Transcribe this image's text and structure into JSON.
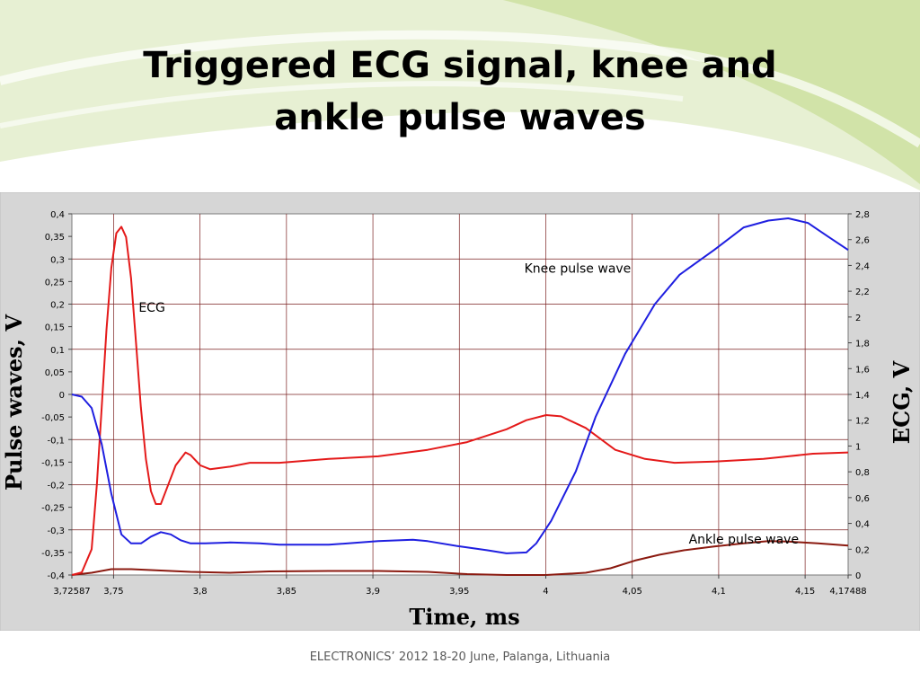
{
  "slide": {
    "title_line1": "Triggered ECG signal, knee and",
    "title_line2": "ankle pulse waves",
    "footer": "ELECTRONICS’ 2012 18-20 June, Palanga, Lithuania"
  },
  "colors": {
    "ecg": "#e41a1a",
    "knee": "#1f1fe0",
    "ankle": "#8b1a10",
    "grid": "#7a2020",
    "panel_bg": "#d6d6d6",
    "slide_accent": "#b8d77a"
  },
  "chart_data": {
    "type": "line",
    "xlabel": "Time, ms",
    "ylabel_left": "Pulse waves, V",
    "ylabel_right": "ECG, V",
    "xlim": [
      3.72587,
      4.17488
    ],
    "ylim_left": [
      -0.4,
      0.4
    ],
    "ylim_right": [
      0,
      2.8
    ],
    "x_ticks": [
      {
        "v": 3.72587,
        "label": "3,72587"
      },
      {
        "v": 3.75,
        "label": "3,75"
      },
      {
        "v": 3.8,
        "label": "3,8"
      },
      {
        "v": 3.85,
        "label": "3,85"
      },
      {
        "v": 3.9,
        "label": "3,9"
      },
      {
        "v": 3.95,
        "label": "3,95"
      },
      {
        "v": 4.0,
        "label": "4"
      },
      {
        "v": 4.05,
        "label": "4,05"
      },
      {
        "v": 4.1,
        "label": "4,1"
      },
      {
        "v": 4.15,
        "label": "4,15"
      },
      {
        "v": 4.17488,
        "label": "4,17488"
      }
    ],
    "y_left_ticks": [
      {
        "v": 0.4,
        "label": "0,4"
      },
      {
        "v": 0.35,
        "label": "0,35"
      },
      {
        "v": 0.3,
        "label": "0,3"
      },
      {
        "v": 0.25,
        "label": "0,25"
      },
      {
        "v": 0.2,
        "label": "0,2"
      },
      {
        "v": 0.15,
        "label": "0,15"
      },
      {
        "v": 0.1,
        "label": "0,1"
      },
      {
        "v": 0.05,
        "label": "0,05"
      },
      {
        "v": 0,
        "label": "0"
      },
      {
        "v": -0.05,
        "label": "-0,05"
      },
      {
        "v": -0.1,
        "label": "-0,1"
      },
      {
        "v": -0.15,
        "label": "-0,15"
      },
      {
        "v": -0.2,
        "label": "-0,2"
      },
      {
        "v": -0.25,
        "label": "-0,25"
      },
      {
        "v": -0.3,
        "label": "-0,3"
      },
      {
        "v": -0.35,
        "label": "-0,35"
      },
      {
        "v": -0.4,
        "label": "-0,4"
      }
    ],
    "y_right_ticks": [
      {
        "v": 2.8,
        "label": "2,8"
      },
      {
        "v": 2.6,
        "label": "2,6"
      },
      {
        "v": 2.4,
        "label": "2,4"
      },
      {
        "v": 2.2,
        "label": "2,2"
      },
      {
        "v": 2.0,
        "label": "2"
      },
      {
        "v": 1.8,
        "label": "1,8"
      },
      {
        "v": 1.6,
        "label": "1,6"
      },
      {
        "v": 1.4,
        "label": "1,4"
      },
      {
        "v": 1.2,
        "label": "1,2"
      },
      {
        "v": 1.0,
        "label": "1"
      },
      {
        "v": 0.8,
        "label": "0,8"
      },
      {
        "v": 0.6,
        "label": "0,6"
      },
      {
        "v": 0.4,
        "label": "0,4"
      },
      {
        "v": 0.2,
        "label": "0,2"
      },
      {
        "v": 0,
        "label": "0"
      }
    ],
    "annotations": [
      {
        "series": "ecg",
        "text": "ECG",
        "x": 3.7645,
        "y": 2.04
      },
      {
        "series": "knee",
        "text": "Knee pulse wave",
        "x": 3.9876,
        "y": 0.27
      },
      {
        "series": "ankle",
        "text": "Ankle pulse wave",
        "x": 4.0827,
        "y": -0.33
      }
    ],
    "series": [
      {
        "key": "ecg",
        "axis": "right",
        "points": [
          [
            3.7259,
            0
          ],
          [
            3.7316,
            0.02
          ],
          [
            3.7373,
            0.2
          ],
          [
            3.7403,
            0.7
          ],
          [
            3.7431,
            1.3
          ],
          [
            3.7459,
            1.9
          ],
          [
            3.7487,
            2.38
          ],
          [
            3.7516,
            2.65
          ],
          [
            3.7545,
            2.7
          ],
          [
            3.7572,
            2.62
          ],
          [
            3.7601,
            2.3
          ],
          [
            3.763,
            1.8
          ],
          [
            3.7658,
            1.3
          ],
          [
            3.7687,
            0.9
          ],
          [
            3.7716,
            0.65
          ],
          [
            3.7744,
            0.55
          ],
          [
            3.7773,
            0.55
          ],
          [
            3.7802,
            0.65
          ],
          [
            3.7859,
            0.85
          ],
          [
            3.7916,
            0.95
          ],
          [
            3.7945,
            0.93
          ],
          [
            3.8002,
            0.85
          ],
          [
            3.8059,
            0.82
          ],
          [
            3.8174,
            0.84
          ],
          [
            3.8288,
            0.87
          ],
          [
            3.8459,
            0.87
          ],
          [
            3.8745,
            0.9
          ],
          [
            3.9031,
            0.92
          ],
          [
            3.9316,
            0.97
          ],
          [
            3.9545,
            1.03
          ],
          [
            3.9773,
            1.13
          ],
          [
            3.9888,
            1.2
          ],
          [
            4.0002,
            1.24
          ],
          [
            4.0088,
            1.23
          ],
          [
            4.0231,
            1.14
          ],
          [
            4.0402,
            0.97
          ],
          [
            4.0574,
            0.9
          ],
          [
            4.0745,
            0.87
          ],
          [
            4.0974,
            0.88
          ],
          [
            4.1259,
            0.9
          ],
          [
            4.1545,
            0.94
          ],
          [
            4.1749,
            0.95
          ]
        ]
      },
      {
        "key": "knee",
        "axis": "left",
        "points": [
          [
            3.7259,
            0
          ],
          [
            3.7316,
            -0.005
          ],
          [
            3.7373,
            -0.03
          ],
          [
            3.7431,
            -0.11
          ],
          [
            3.7487,
            -0.22
          ],
          [
            3.7545,
            -0.31
          ],
          [
            3.7601,
            -0.33
          ],
          [
            3.7659,
            -0.33
          ],
          [
            3.7716,
            -0.315
          ],
          [
            3.7773,
            -0.305
          ],
          [
            3.7831,
            -0.31
          ],
          [
            3.7888,
            -0.323
          ],
          [
            3.7945,
            -0.33
          ],
          [
            3.8031,
            -0.33
          ],
          [
            3.8174,
            -0.328
          ],
          [
            3.8345,
            -0.33
          ],
          [
            3.8459,
            -0.333
          ],
          [
            3.8745,
            -0.333
          ],
          [
            3.9031,
            -0.325
          ],
          [
            3.9231,
            -0.322
          ],
          [
            3.9316,
            -0.325
          ],
          [
            3.9488,
            -0.336
          ],
          [
            3.9659,
            -0.345
          ],
          [
            3.9773,
            -0.352
          ],
          [
            3.9888,
            -0.35
          ],
          [
            3.9945,
            -0.33
          ],
          [
            4.0031,
            -0.28
          ],
          [
            4.0174,
            -0.17
          ],
          [
            4.0288,
            -0.05
          ],
          [
            4.0459,
            0.09
          ],
          [
            4.0631,
            0.2
          ],
          [
            4.0774,
            0.265
          ],
          [
            4.0974,
            0.32
          ],
          [
            4.1145,
            0.37
          ],
          [
            4.1288,
            0.385
          ],
          [
            4.1402,
            0.39
          ],
          [
            4.1516,
            0.38
          ],
          [
            4.1631,
            0.35
          ],
          [
            4.1749,
            0.32
          ]
        ]
      },
      {
        "key": "ankle",
        "axis": "left",
        "points": [
          [
            3.7259,
            -0.4
          ],
          [
            3.7373,
            -0.395
          ],
          [
            3.7487,
            -0.387
          ],
          [
            3.7602,
            -0.387
          ],
          [
            3.7773,
            -0.39
          ],
          [
            3.7945,
            -0.393
          ],
          [
            3.8174,
            -0.395
          ],
          [
            3.8402,
            -0.392
          ],
          [
            3.8745,
            -0.391
          ],
          [
            3.9031,
            -0.391
          ],
          [
            3.9316,
            -0.393
          ],
          [
            3.9545,
            -0.398
          ],
          [
            3.9773,
            -0.4
          ],
          [
            4.0002,
            -0.4
          ],
          [
            4.0231,
            -0.395
          ],
          [
            4.0374,
            -0.385
          ],
          [
            4.0516,
            -0.368
          ],
          [
            4.0659,
            -0.355
          ],
          [
            4.0802,
            -0.345
          ],
          [
            4.0974,
            -0.337
          ],
          [
            4.1145,
            -0.33
          ],
          [
            4.1288,
            -0.325
          ],
          [
            4.1402,
            -0.326
          ],
          [
            4.1574,
            -0.33
          ],
          [
            4.1749,
            -0.335
          ]
        ]
      }
    ]
  }
}
